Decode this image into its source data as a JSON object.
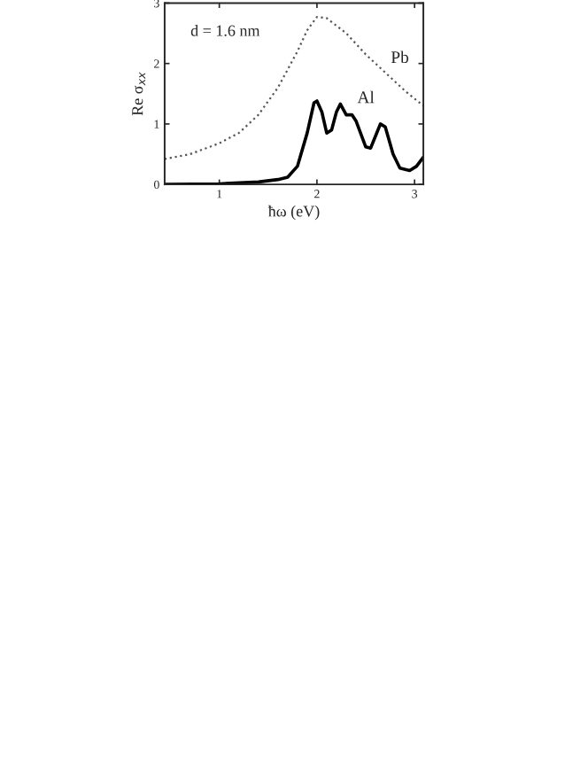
{
  "chart_data": {
    "type": "line",
    "xlabel": "ħω (eV)",
    "ylabel": "Re σ$_{xx}$",
    "xlim": [
      0.44,
      3.09
    ],
    "ylim": [
      0,
      3
    ],
    "xticks": [
      1,
      2,
      3
    ],
    "yticks": [
      0,
      1,
      2,
      3
    ],
    "grid": false,
    "legend": false,
    "annotations": [
      {
        "text": "d = 1.6 nm"
      }
    ],
    "series": [
      {
        "name": "Pb",
        "color": "#555555",
        "line_style": "dotted",
        "x": [
          0.44,
          0.7,
          1.0,
          1.2,
          1.4,
          1.6,
          1.8,
          1.9,
          2.0,
          2.1,
          2.3,
          2.5,
          2.7,
          2.9,
          3.09
        ],
        "values": [
          0.42,
          0.5,
          0.68,
          0.85,
          1.15,
          1.6,
          2.2,
          2.55,
          2.77,
          2.75,
          2.5,
          2.15,
          1.85,
          1.55,
          1.3
        ]
      },
      {
        "name": "Al",
        "color": "#000000",
        "line_style": "solid",
        "x": [
          0.44,
          1.0,
          1.4,
          1.6,
          1.7,
          1.8,
          1.9,
          1.97,
          2.0,
          2.05,
          2.1,
          2.15,
          2.2,
          2.24,
          2.3,
          2.36,
          2.4,
          2.5,
          2.55,
          2.6,
          2.65,
          2.7,
          2.78,
          2.85,
          2.95,
          3.02,
          3.09
        ],
        "values": [
          0.0,
          0.01,
          0.04,
          0.08,
          0.12,
          0.3,
          0.85,
          1.35,
          1.38,
          1.2,
          0.85,
          0.9,
          1.2,
          1.33,
          1.15,
          1.15,
          1.05,
          0.62,
          0.6,
          0.8,
          1.0,
          0.95,
          0.5,
          0.27,
          0.23,
          0.3,
          0.45
        ]
      }
    ]
  }
}
